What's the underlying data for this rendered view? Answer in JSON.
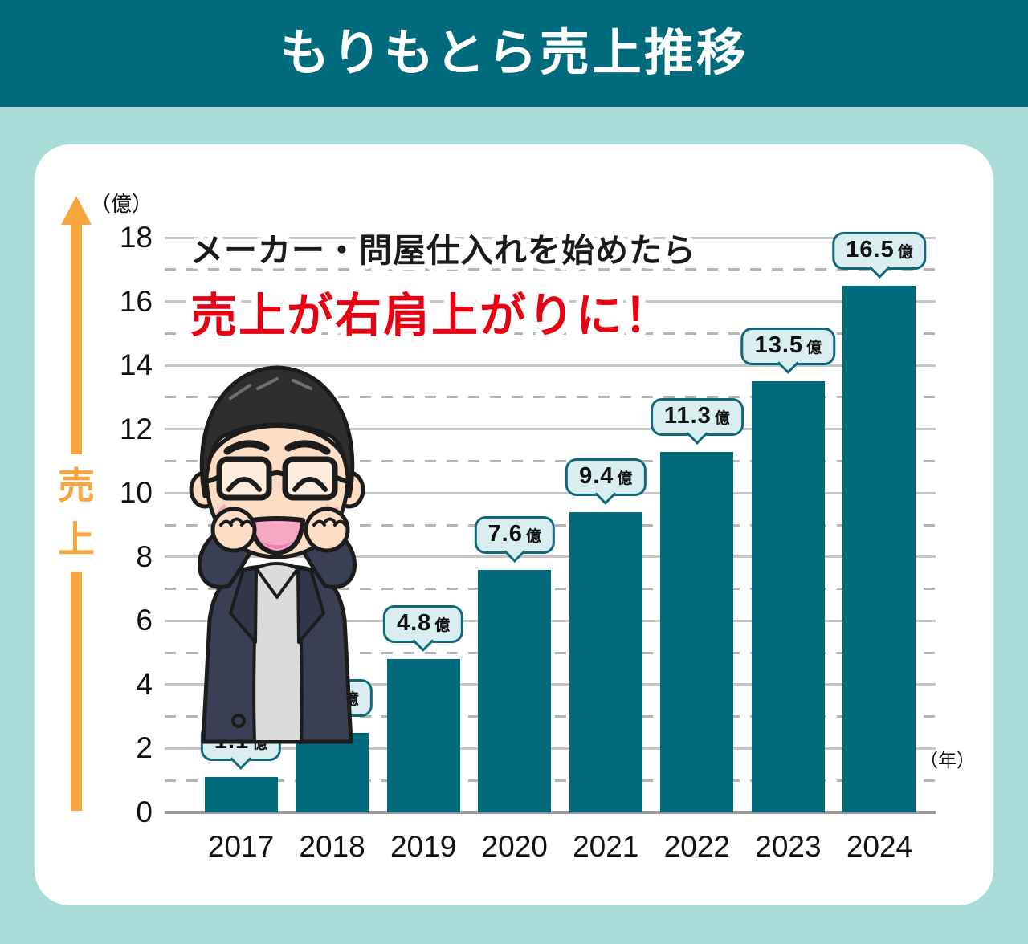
{
  "header": {
    "title": "もりもとら売上推移"
  },
  "annotation": {
    "line1": "メーカー・問屋仕入れを始めたら",
    "line2": "売上が右肩上がりに！"
  },
  "y_axis": {
    "unit_label": "（億）",
    "axis_label": "売上",
    "ticks": [
      "0",
      "2",
      "4",
      "6",
      "8",
      "10",
      "12",
      "14",
      "16",
      "18"
    ]
  },
  "x_axis": {
    "unit_label": "（年）"
  },
  "chart_data": {
    "type": "bar",
    "title": "もりもとら売上推移",
    "categories": [
      "2017",
      "2018",
      "2019",
      "2020",
      "2021",
      "2022",
      "2023",
      "2024"
    ],
    "values": [
      1.1,
      2.5,
      4.8,
      7.6,
      9.4,
      11.3,
      13.5,
      16.5
    ],
    "value_labels": [
      "1.1",
      "2.5",
      "4.8",
      "7.6",
      "9.4",
      "11.3",
      "13.5",
      "16.5"
    ],
    "value_suffix": "億",
    "xlabel": "年",
    "ylabel": "売上",
    "y_unit": "億",
    "ylim": [
      0,
      18
    ],
    "ytick_interval": 2,
    "grid": "solid lines at even values, dashed lines at odd values",
    "legend": "none"
  },
  "icons": {
    "y_axis_arrow": "up-arrow",
    "mascot": "happy-man-with-glasses-raising-fists"
  },
  "colors": {
    "teal": "#006b7d",
    "background": "#a9dcd9",
    "card": "#ffffff",
    "bar": "#006b7d",
    "callout_bg": "#daeef1",
    "callout_border": "#0e6a7a",
    "orange": "#f5a63e",
    "red": "#e60012",
    "text": "#111111",
    "grid_solid": "#c6c6c6",
    "grid_dashed": "#b5b5b5",
    "baseline": "#9a9a9a"
  }
}
